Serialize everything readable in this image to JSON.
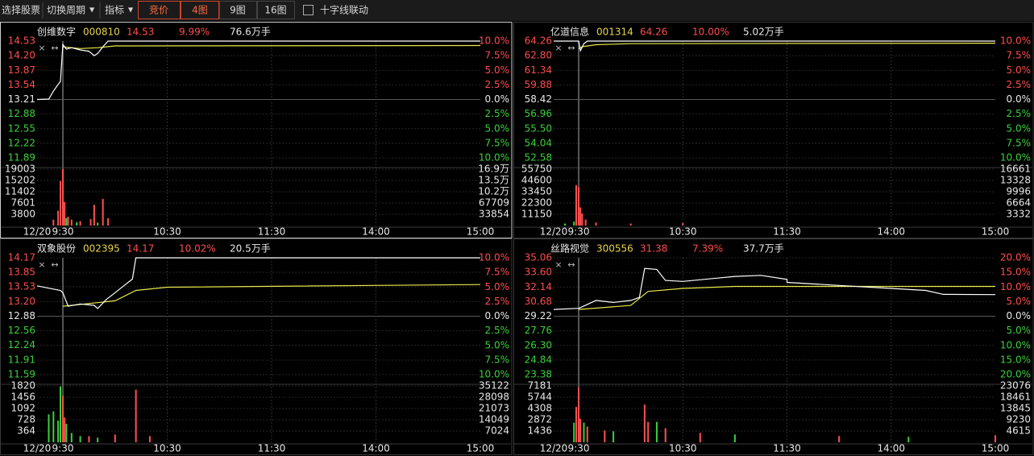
{
  "toolbar": {
    "select_stock": "选择股票",
    "switch_period": "切换周期",
    "indicator": "指标",
    "auction": "竞价",
    "view_4": "4图",
    "view_9": "9图",
    "view_16": "16图",
    "crosshair_link": "十字线联动"
  },
  "time_axis": [
    "12/20",
    "9:30",
    "10:30",
    "11:30",
    "14:00",
    "15:00"
  ],
  "panels": [
    {
      "name": "创维数字",
      "code": "000810",
      "price": "14.53",
      "change": "9.99%",
      "volume": "76.6万手",
      "price_ylim": [
        11.89,
        14.53
      ],
      "price_ticks": [
        14.53,
        {
          "value": 14.2,
          "label": "14.20"
        },
        13.87,
        13.54,
        13.21,
        12.88,
        12.55,
        12.22,
        11.89
      ],
      "pct_ticks": [
        {
          "value": 10,
          "label": "10.0%"
        },
        {
          "value": 7.5,
          "label": "7.5%"
        },
        {
          "value": 5,
          "label": "5.0%"
        },
        {
          "value": 2.5,
          "label": "2.5%"
        },
        {
          "value": 0,
          "label": "0.0%"
        },
        {
          "value": -2.5,
          "label": "2.5%"
        },
        {
          "value": -5,
          "label": "5.0%"
        },
        {
          "value": -7.5,
          "label": "7.5%"
        },
        {
          "value": -10,
          "label": "10.0%"
        }
      ],
      "volume_ylim": [
        0,
        19003
      ],
      "volume_ticks": [
        19003,
        15202,
        11402,
        7601,
        3800
      ],
      "volume_right_ticks": [
        {
          "value": 169000,
          "label": "16.9万"
        },
        {
          "value": 135000,
          "label": "13.5万"
        },
        {
          "value": 102000,
          "label": "10.2万"
        },
        67709,
        33854
      ],
      "price_line": {
        "color": "#ffffff",
        "x": [
          "9:15",
          "9:20",
          "9:22",
          "9:24",
          "9:25",
          "9:30",
          "9:32",
          "9:35",
          "9:40",
          "9:45",
          "9:48",
          "9:50",
          "9:53",
          "9:56",
          "10:30",
          "11:30",
          "13:00",
          "15:00"
        ],
        "values": [
          13.21,
          13.22,
          13.4,
          13.55,
          13.62,
          14.45,
          14.35,
          14.38,
          14.33,
          14.3,
          14.2,
          14.25,
          14.4,
          14.53,
          14.53,
          14.53,
          14.53,
          14.53
        ]
      },
      "avg_line": {
        "color": "#e8e84a",
        "x": [
          "9:30",
          "9:40",
          "9:50",
          "10:00",
          "15:00"
        ],
        "values": [
          14.4,
          14.36,
          14.38,
          14.42,
          14.43
        ]
      },
      "volume_bars": [
        {
          "color": "#ff5050",
          "x": [
            "9:22",
            "9:24",
            "9:25",
            "9:30",
            "9:31",
            "9:33",
            "9:35",
            "9:40",
            "9:46",
            "9:48",
            "9:53",
            "9:56"
          ],
          "values": [
            2000,
            5000,
            15000,
            19003,
            8000,
            3000,
            2000,
            1500,
            2200,
            7000,
            9000,
            2500
          ]
        },
        {
          "color": "#3ad13a",
          "x": [
            "9:32",
            "9:38",
            "9:50"
          ],
          "values": [
            2500,
            1200,
            1000
          ]
        }
      ]
    },
    {
      "name": "亿道信息",
      "code": "001314",
      "price": "64.26",
      "change": "10.00%",
      "volume": "5.02万手",
      "price_ylim": [
        52.58,
        64.26
      ],
      "price_ticks": [
        64.26,
        {
          "value": 62.8,
          "label": "62.80"
        },
        61.34,
        59.88,
        58.42,
        56.96,
        {
          "value": 55.5,
          "label": "55.50"
        },
        54.04,
        52.58
      ],
      "pct_ticks": [
        {
          "value": 10,
          "label": "10.0%"
        },
        {
          "value": 7.5,
          "label": "7.5%"
        },
        {
          "value": 5,
          "label": "5.0%"
        },
        {
          "value": 2.5,
          "label": "2.5%"
        },
        {
          "value": 0,
          "label": "0.0%"
        },
        {
          "value": -2.5,
          "label": "2.5%"
        },
        {
          "value": -5,
          "label": "5.0%"
        },
        {
          "value": -7.5,
          "label": "7.5%"
        },
        {
          "value": -10,
          "label": "10.0%"
        }
      ],
      "volume_ylim": [
        0,
        55750
      ],
      "volume_ticks": [
        55750,
        44600,
        33450,
        22300,
        11150
      ],
      "volume_right_ticks": [
        16661,
        13328,
        9996,
        6664,
        3332
      ],
      "price_line": {
        "color": "#ffffff",
        "x": [
          "9:15",
          "9:25",
          "9:30",
          "9:31",
          "9:33",
          "9:35",
          "15:00"
        ],
        "values": [
          64.26,
          64.26,
          64.26,
          63.3,
          64.0,
          64.26,
          64.26
        ]
      },
      "avg_line": {
        "color": "#e8e84a",
        "x": [
          "9:30",
          "9:32",
          "9:40",
          "10:00",
          "15:00"
        ],
        "values": [
          63.5,
          63.7,
          63.9,
          64.0,
          64.05
        ]
      },
      "volume_bars": [
        {
          "color": "#ff5050",
          "x": [
            "9:25",
            "9:30",
            "9:31",
            "9:32",
            "9:34",
            "9:40",
            "10:00",
            "10:30"
          ],
          "values": [
            40000,
            38000,
            18000,
            12000,
            6000,
            3000,
            2000,
            2500
          ]
        },
        {
          "color": "#3ad13a",
          "x": [
            "9:20",
            "9:24"
          ],
          "values": [
            2000,
            4000
          ]
        }
      ]
    },
    {
      "name": "双象股份",
      "code": "002395",
      "price": "14.17",
      "change": "10.02%",
      "volume": "20.5万手",
      "price_ylim": [
        11.59,
        14.17
      ],
      "price_ticks": [
        14.17,
        13.85,
        13.53,
        {
          "value": 13.2,
          "label": "13.20"
        },
        12.88,
        12.56,
        12.24,
        11.91,
        11.59
      ],
      "pct_ticks": [
        {
          "value": 10,
          "label": "10.0%"
        },
        {
          "value": 7.5,
          "label": "7.5%"
        },
        {
          "value": 5,
          "label": "5.0%"
        },
        {
          "value": 2.5,
          "label": "2.5%"
        },
        {
          "value": 0,
          "label": "0.0%"
        },
        {
          "value": -2.5,
          "label": "2.5%"
        },
        {
          "value": -5,
          "label": "5.0%"
        },
        {
          "value": -7.5,
          "label": "7.5%"
        },
        {
          "value": -10,
          "label": "10.0%"
        }
      ],
      "volume_ylim": [
        0,
        1820
      ],
      "volume_ticks": [
        1820,
        1456,
        1092,
        728,
        364
      ],
      "volume_right_ticks": [
        35122,
        28098,
        21073,
        14049,
        7024
      ],
      "price_line": {
        "color": "#ffffff",
        "x": [
          "9:15",
          "9:20",
          "9:25",
          "9:30",
          "9:33",
          "9:40",
          "9:48",
          "9:50",
          "9:55",
          "10:00",
          "10:05",
          "10:10",
          "10:12",
          "10:30",
          "15:00"
        ],
        "values": [
          13.55,
          13.5,
          13.45,
          13.4,
          13.1,
          13.15,
          13.12,
          13.05,
          13.25,
          13.4,
          13.55,
          13.7,
          14.17,
          14.17,
          14.17
        ]
      },
      "avg_line": {
        "color": "#e8e84a",
        "x": [
          "9:30",
          "10:00",
          "10:12",
          "10:30",
          "15:00"
        ],
        "values": [
          13.1,
          13.22,
          13.45,
          13.52,
          13.58
        ]
      },
      "volume_bars": [
        {
          "color": "#ff5050",
          "x": [
            "9:30",
            "9:31",
            "9:45",
            "10:00",
            "10:12",
            "10:20"
          ],
          "values": [
            1500,
            800,
            200,
            250,
            1700,
            200
          ]
        },
        {
          "color": "#3ad13a",
          "x": [
            "9:20",
            "9:22",
            "9:24",
            "9:25",
            "9:32",
            "9:35",
            "9:40",
            "9:50"
          ],
          "values": [
            900,
            1000,
            700,
            1800,
            600,
            300,
            200,
            150
          ]
        }
      ]
    },
    {
      "name": "丝路视觉",
      "code": "300556",
      "price": "31.38",
      "change": "7.39%",
      "volume": "37.7万手",
      "price_ylim": [
        23.38,
        35.06
      ],
      "price_ticks": [
        35.06,
        {
          "value": 33.6,
          "label": "33.60"
        },
        32.14,
        30.68,
        29.22,
        27.76,
        {
          "value": 26.3,
          "label": "26.30"
        },
        24.84,
        23.38
      ],
      "pct_ticks": [
        {
          "value": 20,
          "label": "20.0%"
        },
        {
          "value": 15,
          "label": "15.0%"
        },
        {
          "value": 10,
          "label": "10.0%"
        },
        {
          "value": 5,
          "label": "5.0%"
        },
        {
          "value": 0,
          "label": "0.0%"
        },
        {
          "value": -5,
          "label": "5.0%"
        },
        {
          "value": -10,
          "label": "10.0%"
        },
        {
          "value": -15,
          "label": "15.0%"
        },
        {
          "value": -20,
          "label": "20.0%"
        }
      ],
      "volume_ylim": [
        0,
        7181
      ],
      "volume_ticks": [
        7181,
        5744,
        4308,
        2872,
        1436
      ],
      "volume_right_ticks": [
        23076,
        18461,
        13845,
        9230,
        4615
      ],
      "price_line": {
        "color": "#ffffff",
        "x": [
          "9:15",
          "9:25",
          "9:30",
          "9:40",
          "9:50",
          "10:00",
          "10:05",
          "10:08",
          "10:15",
          "10:20",
          "10:30",
          "11:00",
          "11:15",
          "11:30",
          "13:00",
          "13:30",
          "14:00",
          "14:20",
          "14:30",
          "15:00"
        ],
        "values": [
          29.9,
          30.0,
          30.0,
          30.8,
          30.6,
          30.8,
          31.1,
          34.0,
          33.9,
          32.8,
          32.7,
          33.2,
          33.3,
          32.9,
          32.6,
          32.3,
          32.0,
          31.8,
          31.4,
          31.38
        ]
      },
      "avg_line": {
        "color": "#e8e84a",
        "x": [
          "9:30",
          "10:00",
          "10:10",
          "10:30",
          "11:00",
          "15:00"
        ],
        "values": [
          29.9,
          30.3,
          31.7,
          32.0,
          32.2,
          32.2
        ]
      },
      "volume_bars": [
        {
          "color": "#ff5050",
          "x": [
            "9:25",
            "9:30",
            "9:31",
            "9:35",
            "9:45",
            "10:08",
            "10:10",
            "10:20",
            "10:40",
            "13:30",
            "15:00"
          ],
          "values": [
            4500,
            7000,
            3000,
            2000,
            1500,
            4800,
            2600,
            1800,
            1200,
            800,
            900
          ]
        },
        {
          "color": "#3ad13a",
          "x": [
            "9:24",
            "9:33",
            "9:50",
            "10:15",
            "11:00",
            "14:10"
          ],
          "values": [
            2500,
            2500,
            1400,
            2600,
            1000,
            700
          ]
        }
      ]
    }
  ]
}
